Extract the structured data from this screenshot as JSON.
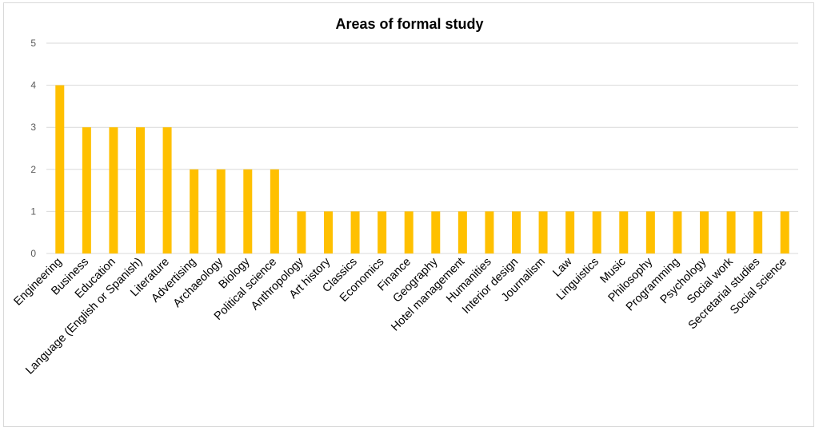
{
  "chart_data": {
    "type": "bar",
    "title": "Areas of formal study",
    "xlabel": "",
    "ylabel": "",
    "ylim": [
      0,
      5
    ],
    "yticks": [
      0,
      1,
      2,
      3,
      4,
      5
    ],
    "grid": true,
    "legend": "none",
    "bar_color": "#FFC000",
    "grid_color": "#d9d9d9",
    "categories": [
      "Engineering",
      "Business",
      "Education",
      "Language (English or Spanish)",
      "Literature",
      "Advertising",
      "Archaeology",
      "Biology",
      "Political science",
      "Anthropology",
      "Art history",
      "Classics",
      "Economics",
      "Finance",
      "Geography",
      "Hotel management",
      "Humanities",
      "Interior design",
      "Journalism",
      "Law",
      "Linguistics",
      "Music",
      "Philosophy",
      "Programming",
      "Psychology",
      "Social work",
      "Secretarial studies",
      "Social science"
    ],
    "values": [
      4,
      3,
      3,
      3,
      3,
      2,
      2,
      2,
      2,
      1,
      1,
      1,
      1,
      1,
      1,
      1,
      1,
      1,
      1,
      1,
      1,
      1,
      1,
      1,
      1,
      1,
      1,
      1
    ]
  }
}
